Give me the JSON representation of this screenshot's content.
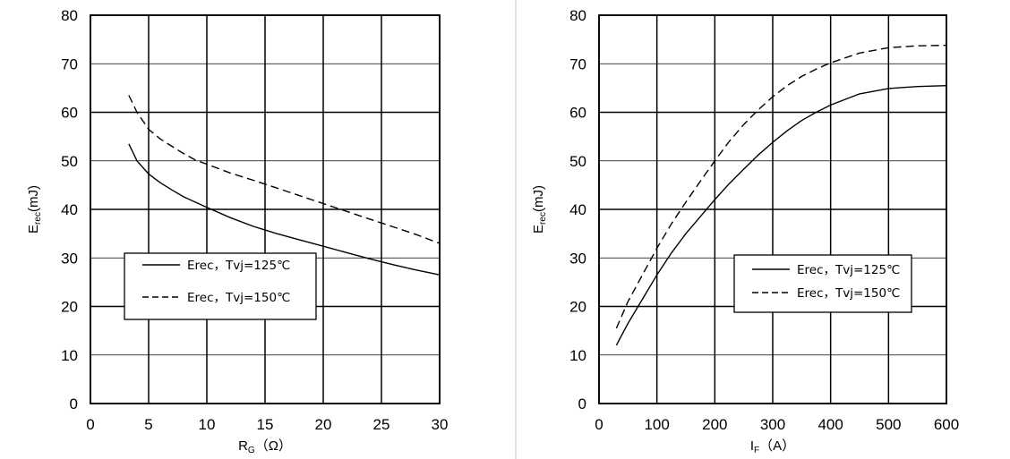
{
  "chart_data": [
    {
      "type": "line",
      "xlabel_main": "R",
      "xlabel_sub": "G",
      "xlabel_unit": "（Ω）",
      "ylabel_main": "E",
      "ylabel_sub": "rec",
      "ylabel_unit": "(mJ)",
      "xlim": [
        0,
        30
      ],
      "ylim": [
        0,
        80
      ],
      "xticks": [
        0,
        5,
        10,
        15,
        20,
        25,
        30
      ],
      "yticks": [
        0,
        10,
        20,
        30,
        40,
        50,
        60,
        70,
        80
      ],
      "grid": true,
      "legend_position": "lower-left",
      "series": [
        {
          "name": "Erec，Tvj=125℃",
          "dash": "solid",
          "points": [
            [
              3.3,
              53.5
            ],
            [
              4,
              50
            ],
            [
              5,
              47.3
            ],
            [
              6,
              45.5
            ],
            [
              7,
              44
            ],
            [
              8,
              42.6
            ],
            [
              9,
              41.5
            ],
            [
              10,
              40.4
            ],
            [
              12,
              38.3
            ],
            [
              14,
              36.5
            ],
            [
              16,
              35
            ],
            [
              18,
              33.7
            ],
            [
              20,
              32.4
            ],
            [
              22,
              31.1
            ],
            [
              24,
              29.8
            ],
            [
              26,
              28.6
            ],
            [
              28,
              27.5
            ],
            [
              30,
              26.5
            ]
          ]
        },
        {
          "name": "Erec，Tvj=150℃",
          "dash": "dashed",
          "points": [
            [
              3.3,
              63.5
            ],
            [
              4,
              60
            ],
            [
              5,
              56.5
            ],
            [
              6,
              54.5
            ],
            [
              7,
              53
            ],
            [
              8,
              51.5
            ],
            [
              9,
              50.2
            ],
            [
              10,
              49.3
            ],
            [
              12,
              47.5
            ],
            [
              14,
              46
            ],
            [
              16,
              44.4
            ],
            [
              18,
              42.8
            ],
            [
              20,
              41.2
            ],
            [
              22,
              39.6
            ],
            [
              24,
              38
            ],
            [
              26,
              36.4
            ],
            [
              28,
              34.8
            ],
            [
              30,
              33
            ]
          ]
        }
      ]
    },
    {
      "type": "line",
      "xlabel_main": "I",
      "xlabel_sub": "F",
      "xlabel_unit": "（A）",
      "ylabel_main": "E",
      "ylabel_sub": "rec",
      "ylabel_unit": "(mJ)",
      "xlim": [
        0,
        600
      ],
      "ylim": [
        0,
        80
      ],
      "xticks": [
        0,
        100,
        200,
        300,
        400,
        500,
        600
      ],
      "yticks": [
        0,
        10,
        20,
        30,
        40,
        50,
        60,
        70,
        80
      ],
      "grid": true,
      "legend_position": "lower-right",
      "series": [
        {
          "name": "Erec，Tvj=125℃",
          "dash": "solid",
          "points": [
            [
              30,
              12
            ],
            [
              50,
              16.5
            ],
            [
              75,
              21.5
            ],
            [
              100,
              26.5
            ],
            [
              125,
              31
            ],
            [
              150,
              35
            ],
            [
              175,
              38.5
            ],
            [
              200,
              42
            ],
            [
              225,
              45.3
            ],
            [
              250,
              48.3
            ],
            [
              275,
              51.2
            ],
            [
              300,
              53.8
            ],
            [
              325,
              56.2
            ],
            [
              350,
              58.3
            ],
            [
              375,
              60
            ],
            [
              400,
              61.5
            ],
            [
              450,
              63.8
            ],
            [
              500,
              64.9
            ],
            [
              550,
              65.3
            ],
            [
              600,
              65.5
            ]
          ]
        },
        {
          "name": "Erec，Tvj=150℃",
          "dash": "dashed",
          "points": [
            [
              30,
              15.5
            ],
            [
              50,
              21
            ],
            [
              75,
              26.5
            ],
            [
              100,
              32
            ],
            [
              125,
              37
            ],
            [
              150,
              41.5
            ],
            [
              175,
              45.8
            ],
            [
              200,
              50
            ],
            [
              225,
              54
            ],
            [
              250,
              57.5
            ],
            [
              275,
              60.5
            ],
            [
              300,
              63.2
            ],
            [
              325,
              65.5
            ],
            [
              350,
              67.4
            ],
            [
              375,
              68.9
            ],
            [
              400,
              70.2
            ],
            [
              450,
              72.2
            ],
            [
              500,
              73.3
            ],
            [
              550,
              73.7
            ],
            [
              600,
              73.8
            ]
          ]
        }
      ]
    }
  ]
}
